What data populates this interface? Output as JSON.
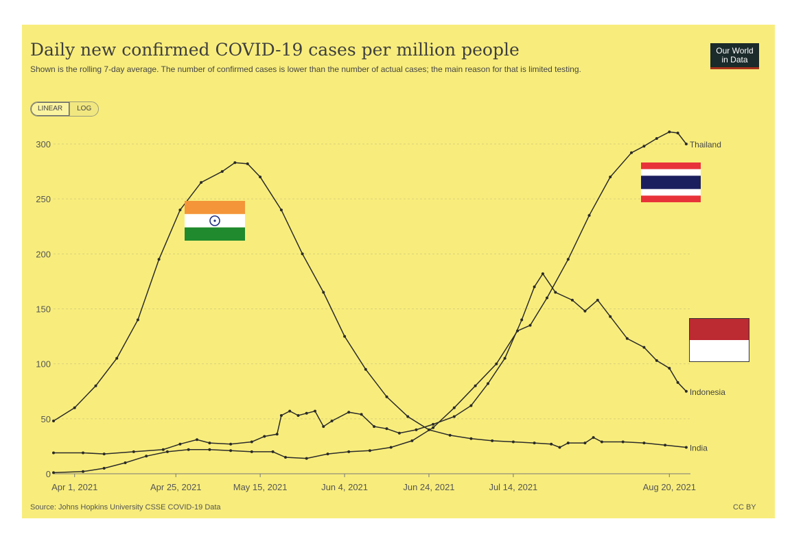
{
  "title": "Daily new confirmed COVID-19 cases per million people",
  "subtitle": "Shown is the rolling 7-day average. The number of confirmed cases is lower than the number of actual cases; the main reason for that is limited testing.",
  "logo": {
    "line1": "Our World",
    "line2": "in Data"
  },
  "scale_toggle": {
    "linear_label": "LINEAR",
    "log_label": "LOG",
    "selected": "linear"
  },
  "source": "Source: Johns Hopkins University CSSE COVID-19 Data",
  "license": "CC BY",
  "flags": {
    "india": "india-flag",
    "thailand": "thailand-flag",
    "indonesia": "indonesia-flag"
  },
  "colors": {
    "background": "#f8ed7c",
    "line": "#2a2a2a",
    "grid": "#d9cf7a"
  },
  "chart_data": {
    "type": "line",
    "x_type": "date",
    "xlim": [
      "2021-03-27",
      "2021-08-25"
    ],
    "ylim": [
      0,
      300
    ],
    "ylabel": "",
    "xlabel": "",
    "y_ticks": [
      0,
      50,
      100,
      150,
      200,
      250,
      300
    ],
    "x_ticks": [
      "Apr 1, 2021",
      "Apr 25, 2021",
      "May 15, 2021",
      "Jun 4, 2021",
      "Jun 24, 2021",
      "Jul 14, 2021",
      "Aug 20, 2021"
    ],
    "x_tick_dates": [
      "2021-04-01",
      "2021-04-25",
      "2021-05-15",
      "2021-06-04",
      "2021-06-24",
      "2021-07-14",
      "2021-08-20"
    ],
    "grid": true,
    "legend": "end-of-line labels",
    "series": [
      {
        "name": "Thailand",
        "points": [
          [
            "2021-03-27",
            1
          ],
          [
            "2021-04-03",
            2
          ],
          [
            "2021-04-08",
            5
          ],
          [
            "2021-04-13",
            10
          ],
          [
            "2021-04-18",
            16
          ],
          [
            "2021-04-23",
            20
          ],
          [
            "2021-04-28",
            22
          ],
          [
            "2021-05-03",
            22
          ],
          [
            "2021-05-08",
            21
          ],
          [
            "2021-05-13",
            20
          ],
          [
            "2021-05-18",
            20
          ],
          [
            "2021-05-21",
            15
          ],
          [
            "2021-05-26",
            14
          ],
          [
            "2021-05-31",
            18
          ],
          [
            "2021-06-05",
            20
          ],
          [
            "2021-06-10",
            21
          ],
          [
            "2021-06-15",
            24
          ],
          [
            "2021-06-20",
            30
          ],
          [
            "2021-06-25",
            42
          ],
          [
            "2021-06-30",
            60
          ],
          [
            "2021-07-05",
            80
          ],
          [
            "2021-07-10",
            100
          ],
          [
            "2021-07-15",
            130
          ],
          [
            "2021-07-18",
            135
          ],
          [
            "2021-07-22",
            160
          ],
          [
            "2021-07-27",
            195
          ],
          [
            "2021-08-01",
            235
          ],
          [
            "2021-08-06",
            270
          ],
          [
            "2021-08-11",
            292
          ],
          [
            "2021-08-14",
            298
          ],
          [
            "2021-08-17",
            305
          ],
          [
            "2021-08-20",
            311
          ],
          [
            "2021-08-22",
            310
          ],
          [
            "2021-08-24",
            300
          ]
        ]
      },
      {
        "name": "Indonesia",
        "points": [
          [
            "2021-03-27",
            19
          ],
          [
            "2021-04-03",
            19
          ],
          [
            "2021-04-08",
            18
          ],
          [
            "2021-04-15",
            20
          ],
          [
            "2021-04-22",
            22
          ],
          [
            "2021-04-26",
            27
          ],
          [
            "2021-04-30",
            31
          ],
          [
            "2021-05-03",
            28
          ],
          [
            "2021-05-08",
            27
          ],
          [
            "2021-05-13",
            29
          ],
          [
            "2021-05-16",
            34
          ],
          [
            "2021-05-19",
            36
          ],
          [
            "2021-05-20",
            53
          ],
          [
            "2021-05-22",
            57
          ],
          [
            "2021-05-24",
            53
          ],
          [
            "2021-05-26",
            55
          ],
          [
            "2021-05-28",
            57
          ],
          [
            "2021-05-30",
            43
          ],
          [
            "2021-06-01",
            48
          ],
          [
            "2021-06-05",
            56
          ],
          [
            "2021-06-08",
            54
          ],
          [
            "2021-06-11",
            43
          ],
          [
            "2021-06-14",
            41
          ],
          [
            "2021-06-17",
            37
          ],
          [
            "2021-06-21",
            40
          ],
          [
            "2021-06-25",
            45
          ],
          [
            "2021-06-30",
            52
          ],
          [
            "2021-07-04",
            62
          ],
          [
            "2021-07-08",
            82
          ],
          [
            "2021-07-12",
            105
          ],
          [
            "2021-07-16",
            140
          ],
          [
            "2021-07-19",
            170
          ],
          [
            "2021-07-21",
            182
          ],
          [
            "2021-07-24",
            165
          ],
          [
            "2021-07-28",
            158
          ],
          [
            "2021-07-31",
            148
          ],
          [
            "2021-08-03",
            158
          ],
          [
            "2021-08-06",
            143
          ],
          [
            "2021-08-10",
            123
          ],
          [
            "2021-08-14",
            115
          ],
          [
            "2021-08-17",
            103
          ],
          [
            "2021-08-20",
            96
          ],
          [
            "2021-08-22",
            83
          ],
          [
            "2021-08-24",
            75
          ]
        ]
      },
      {
        "name": "India",
        "points": [
          [
            "2021-03-27",
            48
          ],
          [
            "2021-04-01",
            60
          ],
          [
            "2021-04-06",
            80
          ],
          [
            "2021-04-11",
            105
          ],
          [
            "2021-04-16",
            140
          ],
          [
            "2021-04-21",
            195
          ],
          [
            "2021-04-26",
            240
          ],
          [
            "2021-05-01",
            265
          ],
          [
            "2021-05-06",
            275
          ],
          [
            "2021-05-09",
            283
          ],
          [
            "2021-05-12",
            282
          ],
          [
            "2021-05-15",
            270
          ],
          [
            "2021-05-20",
            240
          ],
          [
            "2021-05-25",
            200
          ],
          [
            "2021-05-30",
            165
          ],
          [
            "2021-06-04",
            125
          ],
          [
            "2021-06-09",
            95
          ],
          [
            "2021-06-14",
            70
          ],
          [
            "2021-06-19",
            52
          ],
          [
            "2021-06-24",
            40
          ],
          [
            "2021-06-29",
            35
          ],
          [
            "2021-07-04",
            32
          ],
          [
            "2021-07-09",
            30
          ],
          [
            "2021-07-14",
            29
          ],
          [
            "2021-07-19",
            28
          ],
          [
            "2021-07-23",
            27
          ],
          [
            "2021-07-25",
            24
          ],
          [
            "2021-07-27",
            28
          ],
          [
            "2021-07-31",
            28
          ],
          [
            "2021-08-02",
            33
          ],
          [
            "2021-08-04",
            29
          ],
          [
            "2021-08-09",
            29
          ],
          [
            "2021-08-14",
            28
          ],
          [
            "2021-08-19",
            26
          ],
          [
            "2021-08-24",
            24
          ]
        ]
      }
    ]
  }
}
